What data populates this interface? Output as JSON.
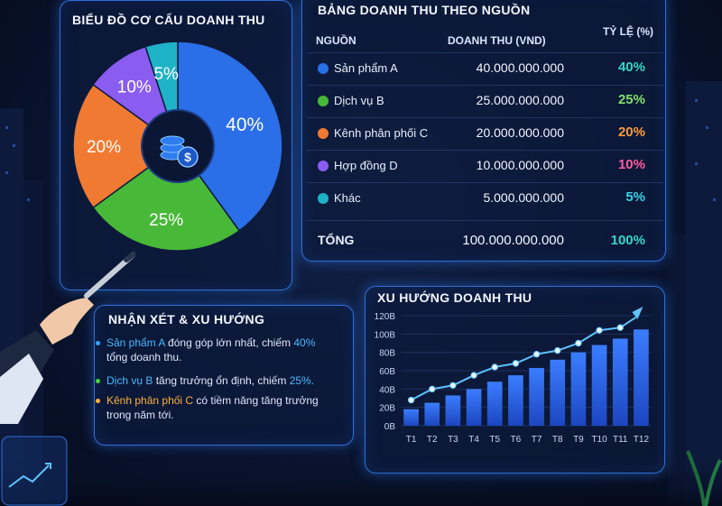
{
  "pie_panel": {
    "title": "BIỂU ĐỒ CƠ CẤU DOANH THU"
  },
  "table_panel": {
    "title": "BẢNG DOANH THU THEO NGUỒN",
    "headers": {
      "source": "NGUỒN",
      "revenue": "DOANH THU (VND)",
      "ratio": "TỶ LỆ (%)"
    },
    "rows": [
      {
        "name": "Sản phẩm A",
        "revenue": "40.000.000.000",
        "pct": "40%",
        "color": "#2a6ee8",
        "pct_color": "#34d6c8"
      },
      {
        "name": "Dịch vụ B",
        "revenue": "25.000.000.000",
        "pct": "25%",
        "color": "#48b838",
        "pct_color": "#7fe06a"
      },
      {
        "name": "Kênh phân phối C",
        "revenue": "20.000.000.000",
        "pct": "20%",
        "color": "#f07a32",
        "pct_color": "#ff9a3c"
      },
      {
        "name": "Hợp đồng D",
        "revenue": "10.000.000.000",
        "pct": "10%",
        "color": "#8a5cf0",
        "pct_color": "#ff5aa0"
      },
      {
        "name": "Khác",
        "revenue": "5.000.000.000",
        "pct": "5%",
        "color": "#1fb3c8",
        "pct_color": "#39d0e8"
      }
    ],
    "total": {
      "label": "TỔNG",
      "revenue": "100.000.000.000",
      "pct": "100%",
      "pct_color": "#34d6c8"
    }
  },
  "notes_panel": {
    "title": "NHẬN XÉT & XU HƯỚNG",
    "items": [
      {
        "highlight": "Sản phẩm A",
        "hl_color": "#47b8ff",
        "line1": " đóng góp lớn nhất, chiếm ",
        "pct": "40%",
        "line2": "tổng doanh thu.",
        "bullet_color": "#3aa0ff"
      },
      {
        "highlight": "Dịch vụ B",
        "hl_color": "#47b8ff",
        "line1": " tăng trưởng ổn định, chiếm ",
        "pct": "25%.",
        "line2": "",
        "bullet_color": "#48d838"
      },
      {
        "highlight": "Kênh phân phối C",
        "hl_color": "#ffb23a",
        "line1": " có tiềm năng tăng trưởng",
        "pct": "",
        "line2": "trong năm tới.",
        "bullet_color": "#ffb23a"
      }
    ]
  },
  "trend_panel": {
    "title": "XU HƯỚNG DOANH THU"
  },
  "chart_data": [
    {
      "type": "pie",
      "categories": [
        "Sản phẩm A",
        "Dịch vụ B",
        "Kênh phân phối C",
        "Hợp đồng D",
        "Khác"
      ],
      "values": [
        40,
        25,
        20,
        10,
        5
      ],
      "labels": [
        "40%",
        "25%",
        "20%",
        "10%",
        "5%"
      ],
      "colors": [
        "#2a6ee8",
        "#48b838",
        "#f07a32",
        "#8a5cf0",
        "#1fb3c8"
      ],
      "center_icon": "coins-dollar-icon"
    },
    {
      "type": "bar",
      "categories": [
        "T1",
        "T2",
        "T3",
        "T4",
        "T5",
        "T6",
        "T7",
        "T8",
        "T9",
        "T10",
        "T11",
        "T12"
      ],
      "values": [
        18,
        25,
        33,
        40,
        48,
        55,
        63,
        72,
        80,
        88,
        95,
        105
      ],
      "line_values": [
        28,
        40,
        44,
        55,
        64,
        68,
        78,
        82,
        90,
        104,
        107,
        122
      ],
      "yticks": [
        "0B",
        "20B",
        "40B",
        "60B",
        "80B",
        "100B",
        "120B"
      ],
      "ylim": [
        0,
        120
      ],
      "colors": {
        "bar": "#2e6cf0",
        "line": "#5fc3ff"
      }
    }
  ]
}
